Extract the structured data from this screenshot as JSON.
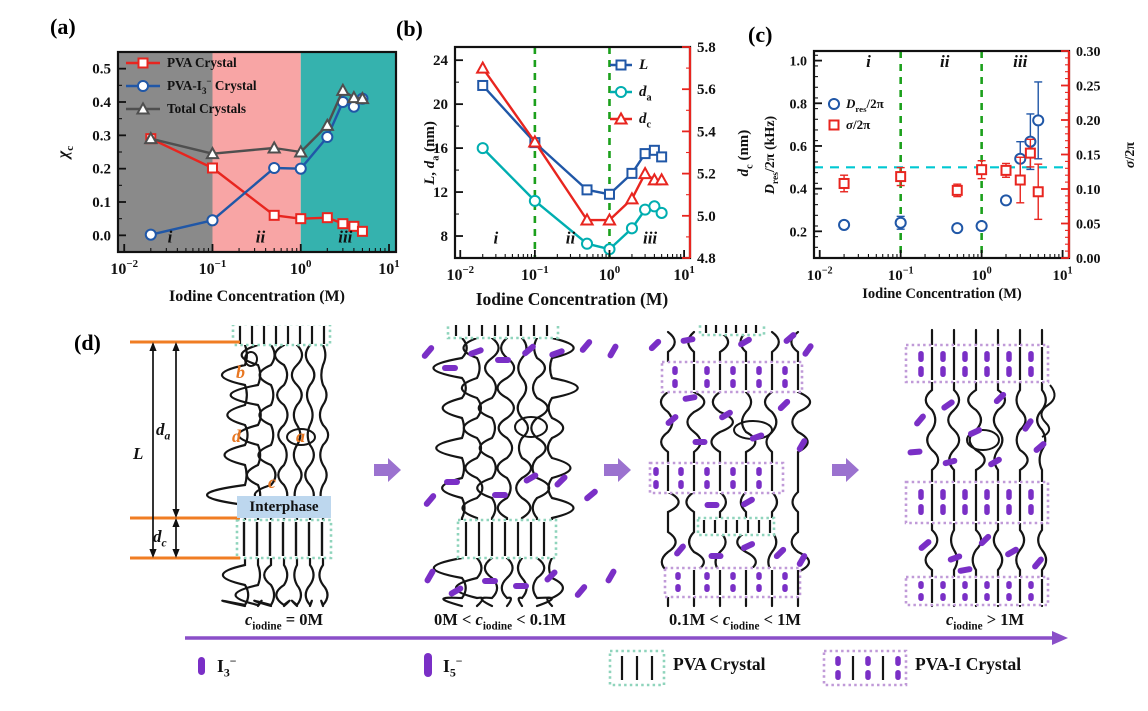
{
  "figure": {
    "panel_labels": [
      "(a)",
      "(b)",
      "(c)",
      "(d)"
    ]
  },
  "colors": {
    "pva_red": "#E8251F",
    "pva_i3_blue": "#2057A7",
    "total_gray": "#4F4F4F",
    "da_teal": "#00AEB0",
    "region_i_gray": "#8A8A8A",
    "region_ii_pink": "#F8A5A5",
    "region_iii_teal": "#35B2AE",
    "green_dash": "#1CA01C",
    "cyan_dash": "#00C8D2",
    "region_label_blue": "#2222DD"
  },
  "chart_data": [
    {
      "id": "a",
      "type": "line",
      "title": "",
      "xlabel": "Iodine Concentration (M)",
      "ylabel": "*χ*_{c}",
      "xscale": "log",
      "xlim": [
        0.0085,
        12
      ],
      "xticks": [
        0.01,
        0.1,
        1,
        10
      ],
      "xtick_labels": [
        "10^{−2}",
        "10^{−1}",
        "10^{0}",
        "10^{1}"
      ],
      "ylim": [
        -0.05,
        0.55
      ],
      "yticks": [
        0.0,
        0.1,
        0.2,
        0.3,
        0.4,
        0.5
      ],
      "ytick_labels": [
        "0.0",
        "0.1",
        "0.2",
        "0.3",
        "0.4",
        "0.5"
      ],
      "yminor": 0.05,
      "regions": [
        {
          "from": 0.0085,
          "to": 0.1,
          "color": "#8A8A8A"
        },
        {
          "from": 0.1,
          "to": 1,
          "color": "#F8A5A5"
        },
        {
          "from": 1,
          "to": 12,
          "color": "#35B2AE"
        }
      ],
      "region_label_color": "#2222DD",
      "region_labels": [
        {
          "text": "i",
          "x": 0.033,
          "y": -0.022
        },
        {
          "text": "ii",
          "x": 0.35,
          "y": -0.022
        },
        {
          "text": "iii",
          "x": 3.2,
          "y": -0.022
        }
      ],
      "x": [
        0.02,
        0.1,
        0.5,
        1,
        2,
        3,
        4,
        5
      ],
      "series": [
        {
          "name": "PVA Crystal",
          "color": "#E8251F",
          "marker": "square",
          "axis": "left",
          "line": true,
          "values": [
            0.29,
            0.202,
            0.06,
            0.05,
            0.053,
            0.035,
            0.027,
            0.012
          ]
        },
        {
          "name": "PVA-I_{3}^{−} Crystal",
          "color": "#2057A7",
          "marker": "circle",
          "axis": "left",
          "line": true,
          "values": [
            0.002,
            0.045,
            0.202,
            0.2,
            0.295,
            0.4,
            0.386,
            0.41
          ]
        },
        {
          "name": "Total Crystals",
          "color": "#4F4F4F",
          "marker": "triangle",
          "axis": "left",
          "line": true,
          "values": [
            0.29,
            0.245,
            0.262,
            0.25,
            0.33,
            0.435,
            0.413,
            0.41
          ]
        }
      ]
    },
    {
      "id": "b",
      "type": "line",
      "title": "",
      "xlabel": "Iodine Concentration (M)",
      "ylabel": "*L*, *d*_{a} (nm)",
      "ylabel_right": "*d*_{c} (nm)",
      "xscale": "log",
      "xlim": [
        0.0085,
        12
      ],
      "xticks": [
        0.01,
        0.1,
        1,
        10
      ],
      "xtick_labels": [
        "10^{−2}",
        "10^{−1}",
        "10^{0}",
        "10^{1}"
      ],
      "ylim": [
        6,
        25.2
      ],
      "yticks": [
        8,
        12,
        16,
        20,
        24
      ],
      "ytick_labels": [
        "8",
        "12",
        "16",
        "20",
        "24"
      ],
      "yminor": 2,
      "ylim_right": [
        4.8,
        5.8
      ],
      "yticks_right": [
        4.8,
        5.0,
        5.2,
        5.4,
        5.6,
        5.8
      ],
      "ytick_labels_right": [
        "4.8",
        "5.0",
        "5.2",
        "5.4",
        "5.6",
        "5.8"
      ],
      "yminor_right": 0.1,
      "vlines": [
        {
          "x": 0.1,
          "color": "#1CA01C"
        },
        {
          "x": 1,
          "color": "#1CA01C"
        }
      ],
      "region_label_color": "#2222DD",
      "region_labels": [
        {
          "text": "i",
          "x": 0.03,
          "y": 7.3
        },
        {
          "text": "ii",
          "x": 0.3,
          "y": 7.3
        },
        {
          "text": "iii",
          "x": 3.5,
          "y": 7.3
        }
      ],
      "x": [
        0.02,
        0.1,
        0.5,
        1,
        2,
        3,
        4,
        5
      ],
      "series": [
        {
          "name": "*L*",
          "color": "#2057A7",
          "marker": "square",
          "axis": "left",
          "line": true,
          "values": [
            21.7,
            16.5,
            12.2,
            11.8,
            13.7,
            15.5,
            15.8,
            15.2
          ]
        },
        {
          "name": "*d*_{a}",
          "color": "#00AEB0",
          "marker": "circle",
          "axis": "left",
          "line": true,
          "values": [
            16.0,
            11.2,
            7.3,
            6.8,
            8.7,
            10.4,
            10.7,
            10.1
          ]
        },
        {
          "name": "*d*_{c}",
          "color": "#E8251F",
          "marker": "triangle",
          "axis": "right",
          "line": true,
          "values": [
            5.7,
            5.35,
            4.98,
            4.98,
            5.08,
            5.2,
            5.17,
            5.17
          ]
        }
      ]
    },
    {
      "id": "c",
      "type": "scatter",
      "title": "",
      "xlabel": "Iodine Concentration (M)",
      "ylabel": "*D*_{res}/2π (kHz)",
      "ylabel_right": "*σ*/2π",
      "xscale": "log",
      "xlim": [
        0.0085,
        12
      ],
      "xticks": [
        0.01,
        0.1,
        1,
        10
      ],
      "xtick_labels": [
        "10^{−2}",
        "10^{−1}",
        "10^{0}",
        "10^{1}"
      ],
      "ylim": [
        0.075,
        1.045
      ],
      "yticks": [
        0.2,
        0.4,
        0.6,
        0.8,
        1.0
      ],
      "ytick_labels": [
        "0.2",
        "0.4",
        "0.6",
        "0.8",
        "1.0"
      ],
      "yminor": 0.05,
      "ylim_right": [
        0,
        0.3
      ],
      "yticks_right": [
        0,
        0.05,
        0.1,
        0.15,
        0.2,
        0.25,
        0.3
      ],
      "ytick_labels_right": [
        "0.00",
        "0.05",
        "0.10",
        "0.15",
        "0.20",
        "0.25",
        "0.30"
      ],
      "yminor_right": 0.01,
      "vlines": [
        {
          "x": 0.1,
          "color": "#1CA01C"
        },
        {
          "x": 1,
          "color": "#1CA01C"
        }
      ],
      "hlines": [
        {
          "y": 0.5,
          "color": "#00C8D2"
        }
      ],
      "region_label_color": "#2222DD",
      "region_labels": [
        {
          "text": "i",
          "x": 0.04,
          "y": 0.97
        },
        {
          "text": "ii",
          "x": 0.35,
          "y": 0.97
        },
        {
          "text": "iii",
          "x": 3.0,
          "y": 0.97
        }
      ],
      "x": [
        0.02,
        0.1,
        0.5,
        1,
        2,
        3,
        4,
        5
      ],
      "series": [
        {
          "name": "*D*_{res}/2π",
          "color": "#2057A7",
          "marker": "circle",
          "axis": "left",
          "line": false,
          "values": [
            0.23,
            0.24,
            0.215,
            0.225,
            0.345,
            0.54,
            0.62,
            0.72
          ],
          "errors": [
            0.012,
            0.03,
            0.012,
            0.012,
            0.018,
            0.08,
            0.13,
            0.18
          ]
        },
        {
          "name": "*σ*/2π",
          "color": "#E8251F",
          "marker": "square",
          "axis": "right",
          "line": false,
          "values": [
            0.108,
            0.118,
            0.098,
            0.128,
            0.127,
            0.113,
            0.152,
            0.096
          ],
          "errors": [
            0.012,
            0.013,
            0.009,
            0.013,
            0.01,
            0.033,
            0.02,
            0.04
          ]
        }
      ]
    }
  ],
  "panel_d": {
    "dim_L": "*L*",
    "dim_da": "*d*_{a}",
    "dim_dc": "*d*_{c}",
    "interphase_label": "Interphase",
    "chain_point_a": "a",
    "chain_point_b": "b",
    "chain_point_c": "c",
    "chain_point_d": "d",
    "captions": [
      "*c*_{iodine} = 0M",
      "0M < *c*_{iodine} < 0.1M",
      "0.1M < *c*_{iodine} < 1M",
      "*c*_{iodine} > 1M"
    ],
    "legend": [
      {
        "icon": "i3-ion",
        "label": "I_{3}^{−}"
      },
      {
        "icon": "i5-ion",
        "label": "I_{5}^{−}"
      },
      {
        "icon": "pva-crystal",
        "label": "PVA Crystal"
      },
      {
        "icon": "pva-i-crystal",
        "label": "PVA-I Crystal"
      }
    ],
    "colors": {
      "iodine": "#7A2FC6",
      "flow_arrow": "#9B72CF",
      "pva_crystal_border": "#8FD4BC",
      "pva_i_crystal_border": "#C09AD8",
      "dimension_orange": "#F07D23",
      "interphase_bg": "#BDD7EE",
      "label_orange": "#E87722"
    }
  }
}
